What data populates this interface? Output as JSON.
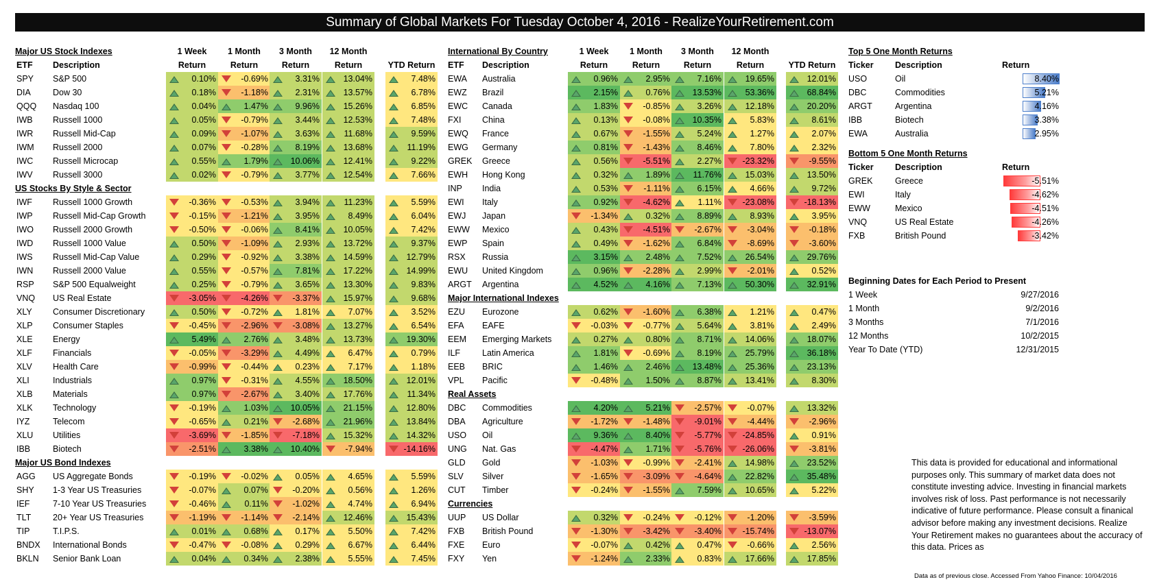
{
  "title": "Summary of Global Markets For Tuesday October 4, 2016 - RealizeYourRetirement.com",
  "colors": {
    "dark_green": "#5cb95f",
    "green": "#8fcc6c",
    "light_green": "#c2d86d",
    "yellow": "#ffe77f",
    "orange": "#fbbf6d",
    "light_red": "#f9956a",
    "red": "#f8696b"
  },
  "headers": {
    "week1": "1 Week",
    "month1": "1 Month",
    "month3": "3 Month",
    "month12": "12 Month",
    "return": "Return",
    "ytd": "YTD Return",
    "etf": "ETF",
    "desc": "Description"
  },
  "left_sections": [
    {
      "title": "Major US Stock Indexes",
      "has_period_header": true,
      "rows": [
        {
          "t": "SPY",
          "d": "S&P 500",
          "v": [
            "0.10%",
            "-0.69%",
            "3.31%",
            "13.04%",
            "7.48%"
          ]
        },
        {
          "t": "DIA",
          "d": "Dow 30",
          "v": [
            "0.18%",
            "-1.18%",
            "2.31%",
            "13.57%",
            "6.78%"
          ]
        },
        {
          "t": "QQQ",
          "d": "Nasdaq 100",
          "v": [
            "0.04%",
            "1.47%",
            "9.96%",
            "15.26%",
            "6.85%"
          ]
        },
        {
          "t": "IWB",
          "d": "Russell 1000",
          "v": [
            "0.05%",
            "-0.79%",
            "3.44%",
            "12.53%",
            "7.48%"
          ]
        },
        {
          "t": "IWR",
          "d": "Russell Mid-Cap",
          "v": [
            "0.09%",
            "-1.07%",
            "3.63%",
            "11.68%",
            "9.59%"
          ]
        },
        {
          "t": "IWM",
          "d": "Russell 2000",
          "v": [
            "0.07%",
            "-0.28%",
            "8.19%",
            "13.68%",
            "11.19%"
          ]
        },
        {
          "t": "IWC",
          "d": "Russell Microcap",
          "v": [
            "0.55%",
            "1.79%",
            "10.06%",
            "12.41%",
            "9.22%"
          ]
        },
        {
          "t": "IWV",
          "d": "Russell 3000",
          "v": [
            "0.02%",
            "-0.79%",
            "3.77%",
            "12.54%",
            "7.66%"
          ]
        }
      ]
    },
    {
      "title": "US Stocks By Style & Sector",
      "rows": [
        {
          "t": "IWF",
          "d": "Russell 1000 Growth",
          "v": [
            "-0.36%",
            "-0.53%",
            "3.94%",
            "11.23%",
            "5.59%"
          ]
        },
        {
          "t": "IWP",
          "d": "Russell Mid-Cap Growth",
          "v": [
            "-0.15%",
            "-1.21%",
            "3.95%",
            "8.49%",
            "6.04%"
          ]
        },
        {
          "t": "IWO",
          "d": "Russell 2000 Growth",
          "v": [
            "-0.50%",
            "-0.06%",
            "8.41%",
            "10.05%",
            "7.42%"
          ]
        },
        {
          "t": "IWD",
          "d": "Russell 1000 Value",
          "v": [
            "0.50%",
            "-1.09%",
            "2.93%",
            "13.72%",
            "9.37%"
          ]
        },
        {
          "t": "IWS",
          "d": "Russell Mid-Cap Value",
          "v": [
            "0.29%",
            "-0.92%",
            "3.38%",
            "14.59%",
            "12.79%"
          ]
        },
        {
          "t": "IWN",
          "d": "Russell 2000 Value",
          "v": [
            "0.55%",
            "-0.57%",
            "7.81%",
            "17.22%",
            "14.99%"
          ]
        },
        {
          "t": "RSP",
          "d": "S&P 500 Equalweight",
          "v": [
            "0.25%",
            "-0.79%",
            "3.65%",
            "13.30%",
            "9.83%"
          ]
        },
        {
          "t": "VNQ",
          "d": "US Real Estate",
          "v": [
            "-3.05%",
            "-4.26%",
            "-3.37%",
            "15.97%",
            "9.68%"
          ]
        },
        {
          "t": "XLY",
          "d": "Consumer Discretionary",
          "v": [
            "0.50%",
            "-0.72%",
            "1.81%",
            "7.07%",
            "3.52%"
          ]
        },
        {
          "t": "XLP",
          "d": "Consumer Staples",
          "v": [
            "-0.45%",
            "-2.96%",
            "-3.08%",
            "13.27%",
            "6.54%"
          ]
        },
        {
          "t": "XLE",
          "d": "Energy",
          "v": [
            "5.49%",
            "2.76%",
            "3.48%",
            "13.73%",
            "19.30%"
          ]
        },
        {
          "t": "XLF",
          "d": "Financials",
          "v": [
            "-0.05%",
            "-3.29%",
            "4.49%",
            "6.47%",
            "0.79%"
          ]
        },
        {
          "t": "XLV",
          "d": "Health Care",
          "v": [
            "-0.99%",
            "-0.44%",
            "0.23%",
            "7.17%",
            "1.18%"
          ]
        },
        {
          "t": "XLI",
          "d": "Industrials",
          "v": [
            "0.97%",
            "-0.31%",
            "4.55%",
            "18.50%",
            "12.01%"
          ]
        },
        {
          "t": "XLB",
          "d": "Materials",
          "v": [
            "0.97%",
            "-2.67%",
            "3.40%",
            "17.76%",
            "11.34%"
          ]
        },
        {
          "t": "XLK",
          "d": "Technology",
          "v": [
            "-0.19%",
            "1.03%",
            "10.05%",
            "21.15%",
            "12.80%"
          ]
        },
        {
          "t": "IYZ",
          "d": "Telecom",
          "v": [
            "-0.65%",
            "0.21%",
            "-2.68%",
            "21.96%",
            "13.84%"
          ]
        },
        {
          "t": "XLU",
          "d": "Utilities",
          "v": [
            "-3.69%",
            "-1.85%",
            "-7.18%",
            "15.32%",
            "14.32%"
          ]
        },
        {
          "t": "IBB",
          "d": "Biotech",
          "v": [
            "-2.51%",
            "3.38%",
            "10.40%",
            "-7.94%",
            "-14.16%"
          ]
        }
      ]
    },
    {
      "title": "Major US Bond Indexes",
      "rows": [
        {
          "t": "AGG",
          "d": "US Aggregate Bonds",
          "v": [
            "-0.19%",
            "-0.02%",
            "0.05%",
            "4.65%",
            "5.59%"
          ]
        },
        {
          "t": "SHY",
          "d": "1-3 Year US Treasuries",
          "v": [
            "-0.07%",
            "0.07%",
            "-0.20%",
            "0.56%",
            "1.26%"
          ]
        },
        {
          "t": "IEF",
          "d": "7-10 Year US Treasuries",
          "v": [
            "-0.46%",
            "0.11%",
            "-1.02%",
            "4.74%",
            "6.94%"
          ]
        },
        {
          "t": "TLT",
          "d": "20+ Year US Treasuries",
          "v": [
            "-1.19%",
            "-1.14%",
            "-2.14%",
            "12.46%",
            "15.43%"
          ]
        },
        {
          "t": "TIP",
          "d": "T.I.P.S.",
          "v": [
            "0.01%",
            "0.68%",
            "0.17%",
            "5.50%",
            "7.42%"
          ]
        },
        {
          "t": "BNDX",
          "d": "International Bonds",
          "v": [
            "-0.47%",
            "-0.08%",
            "0.29%",
            "6.67%",
            "6.44%"
          ]
        },
        {
          "t": "BKLN",
          "d": "Senior Bank Loan",
          "v": [
            "0.04%",
            "0.34%",
            "2.38%",
            "5.55%",
            "7.45%"
          ]
        }
      ]
    }
  ],
  "middle_sections": [
    {
      "title": "International By Country",
      "has_period_header": true,
      "rows": [
        {
          "t": "EWA",
          "d": "Australia",
          "v": [
            "0.96%",
            "2.95%",
            "7.16%",
            "19.65%",
            "12.01%"
          ]
        },
        {
          "t": "EWZ",
          "d": "Brazil",
          "v": [
            "2.15%",
            "0.76%",
            "13.53%",
            "53.36%",
            "68.84%"
          ]
        },
        {
          "t": "EWC",
          "d": "Canada",
          "v": [
            "1.83%",
            "-0.85%",
            "3.26%",
            "12.18%",
            "20.20%"
          ]
        },
        {
          "t": "FXI",
          "d": "China",
          "v": [
            "0.13%",
            "-0.08%",
            "10.35%",
            "5.83%",
            "8.61%"
          ]
        },
        {
          "t": "EWQ",
          "d": "France",
          "v": [
            "0.67%",
            "-1.55%",
            "5.24%",
            "1.27%",
            "2.07%"
          ]
        },
        {
          "t": "EWG",
          "d": "Germany",
          "v": [
            "0.81%",
            "-1.43%",
            "8.46%",
            "7.80%",
            "2.32%"
          ]
        },
        {
          "t": "GREK",
          "d": "Greece",
          "v": [
            "0.56%",
            "-5.51%",
            "2.27%",
            "-23.32%",
            "-9.55%"
          ]
        },
        {
          "t": "EWH",
          "d": "Hong Kong",
          "v": [
            "0.32%",
            "1.89%",
            "11.76%",
            "15.03%",
            "13.50%"
          ]
        },
        {
          "t": "INP",
          "d": "India",
          "v": [
            "0.53%",
            "-1.11%",
            "6.15%",
            "4.66%",
            "9.72%"
          ]
        },
        {
          "t": "EWI",
          "d": "Italy",
          "v": [
            "0.92%",
            "-4.62%",
            "1.11%",
            "-23.08%",
            "-18.13%"
          ]
        },
        {
          "t": "EWJ",
          "d": "Japan",
          "v": [
            "-1.34%",
            "0.32%",
            "8.89%",
            "8.93%",
            "3.95%"
          ]
        },
        {
          "t": "EWW",
          "d": "Mexico",
          "v": [
            "0.43%",
            "-4.51%",
            "-2.67%",
            "-3.04%",
            "-0.18%"
          ]
        },
        {
          "t": "EWP",
          "d": "Spain",
          "v": [
            "0.49%",
            "-1.62%",
            "6.84%",
            "-8.69%",
            "-3.60%"
          ]
        },
        {
          "t": "RSX",
          "d": "Russia",
          "v": [
            "3.15%",
            "2.48%",
            "7.52%",
            "26.54%",
            "29.76%"
          ]
        },
        {
          "t": "EWU",
          "d": "United Kingdom",
          "v": [
            "0.96%",
            "-2.28%",
            "2.99%",
            "-2.01%",
            "0.52%"
          ]
        },
        {
          "t": "ARGT",
          "d": "Argentina",
          "v": [
            "4.52%",
            "4.16%",
            "7.13%",
            "50.30%",
            "32.91%"
          ]
        }
      ]
    },
    {
      "title": "Major International Indexes",
      "rows": [
        {
          "t": "EZU",
          "d": "Eurozone",
          "v": [
            "0.62%",
            "-1.60%",
            "6.38%",
            "1.21%",
            "0.47%"
          ]
        },
        {
          "t": "EFA",
          "d": "EAFE",
          "v": [
            "-0.03%",
            "-0.77%",
            "5.64%",
            "3.81%",
            "2.49%"
          ]
        },
        {
          "t": "EEM",
          "d": "Emerging Markets",
          "v": [
            "0.27%",
            "0.80%",
            "8.71%",
            "14.06%",
            "18.07%"
          ]
        },
        {
          "t": "ILF",
          "d": "Latin America",
          "v": [
            "1.81%",
            "-0.69%",
            "8.19%",
            "25.79%",
            "36.18%"
          ]
        },
        {
          "t": "EEB",
          "d": "BRIC",
          "v": [
            "1.46%",
            "2.46%",
            "13.48%",
            "25.36%",
            "23.13%"
          ]
        },
        {
          "t": "VPL",
          "d": "Pacific",
          "v": [
            "-0.48%",
            "1.50%",
            "8.87%",
            "13.41%",
            "8.30%"
          ]
        }
      ]
    },
    {
      "title": "Real Assets",
      "rows": [
        {
          "t": "DBC",
          "d": "Commodities",
          "v": [
            "4.20%",
            "5.21%",
            "-2.57%",
            "-0.07%",
            "13.32%"
          ]
        },
        {
          "t": "DBA",
          "d": "Agriculture",
          "v": [
            "-1.72%",
            "-1.48%",
            "-9.01%",
            "-4.44%",
            "-2.96%"
          ]
        },
        {
          "t": "USO",
          "d": "Oil",
          "v": [
            "9.36%",
            "8.40%",
            "-5.77%",
            "-24.85%",
            "0.91%"
          ]
        },
        {
          "t": "UNG",
          "d": "Nat. Gas",
          "v": [
            "-4.47%",
            "1.71%",
            "-5.76%",
            "-26.06%",
            "-3.81%"
          ]
        },
        {
          "t": "GLD",
          "d": "Gold",
          "v": [
            "-1.03%",
            "-0.99%",
            "-2.41%",
            "14.98%",
            "23.52%"
          ]
        },
        {
          "t": "SLV",
          "d": "Silver",
          "v": [
            "-1.65%",
            "-3.09%",
            "-4.64%",
            "22.82%",
            "35.48%"
          ]
        },
        {
          "t": "CUT",
          "d": "Timber",
          "v": [
            "-0.24%",
            "-1.55%",
            "7.59%",
            "10.65%",
            "5.22%"
          ]
        }
      ]
    },
    {
      "title": "Currencies",
      "rows": [
        {
          "t": "UUP",
          "d": "US Dollar",
          "v": [
            "0.32%",
            "-0.24%",
            "-0.12%",
            "-1.20%",
            "-3.59%"
          ]
        },
        {
          "t": "FXB",
          "d": "British Pound",
          "v": [
            "-1.30%",
            "-3.42%",
            "-3.40%",
            "-15.74%",
            "-13.07%"
          ]
        },
        {
          "t": "FXE",
          "d": "Euro",
          "v": [
            "-0.07%",
            "0.42%",
            "0.47%",
            "-0.66%",
            "2.56%"
          ]
        },
        {
          "t": "FXY",
          "d": "Yen",
          "v": [
            "-1.24%",
            "2.33%",
            "0.83%",
            "17.66%",
            "17.85%"
          ]
        }
      ]
    }
  ],
  "top5": {
    "title": "Top 5 One Month Returns",
    "col_ticker": "Ticker",
    "col_desc": "Description",
    "col_return": "Return",
    "rows": [
      {
        "t": "USO",
        "d": "Oil",
        "r": "8.40%",
        "f": 1.0
      },
      {
        "t": "DBC",
        "d": "Commodities",
        "r": "5.21%",
        "f": 0.62
      },
      {
        "t": "ARGT",
        "d": "Argentina",
        "r": "4.16%",
        "f": 0.495
      },
      {
        "t": "IBB",
        "d": "Biotech",
        "r": "3.38%",
        "f": 0.4
      },
      {
        "t": "EWA",
        "d": "Australia",
        "r": "2.95%",
        "f": 0.35
      }
    ]
  },
  "bottom5": {
    "title": "Bottom 5 One Month Returns",
    "col_ticker": "Ticker",
    "col_desc": "Description",
    "col_return": "Return",
    "rows": [
      {
        "t": "GREK",
        "d": "Greece",
        "r": "-5.51%",
        "f": 1.0
      },
      {
        "t": "EWI",
        "d": "Italy",
        "r": "-4.62%",
        "f": 0.84
      },
      {
        "t": "EWW",
        "d": "Mexico",
        "r": "-4.51%",
        "f": 0.82
      },
      {
        "t": "VNQ",
        "d": "US Real Estate",
        "r": "-4.26%",
        "f": 0.77
      },
      {
        "t": "FXB",
        "d": "British Pound",
        "r": "-3.42%",
        "f": 0.62
      }
    ]
  },
  "dates": {
    "title": "Beginning Dates for Each Period to Present",
    "rows": [
      {
        "label": "1 Week",
        "date": "9/27/2016"
      },
      {
        "label": "1 Month",
        "date": "9/2/2016"
      },
      {
        "label": "3 Months",
        "date": "7/1/2016"
      },
      {
        "label": "12 Months",
        "date": "10/2/2015"
      },
      {
        "label": "Year To Date (YTD)",
        "date": "12/31/2015"
      }
    ]
  },
  "disclaimer": "This data is provided for educational and informational purposes only. This summary of market data does not constitute investing advice. Investing in financial markets involves risk of loss.  Past performance is not necessarily  indicative of future performance. Please consult a finanical advisor before making any investment decisions. Realize Your Retirement makes no guarantees about the accuracy of this data. Prices as",
  "footnote": "Data as of previous close. Accessed From Yahoo Finance: 10/04/2016"
}
